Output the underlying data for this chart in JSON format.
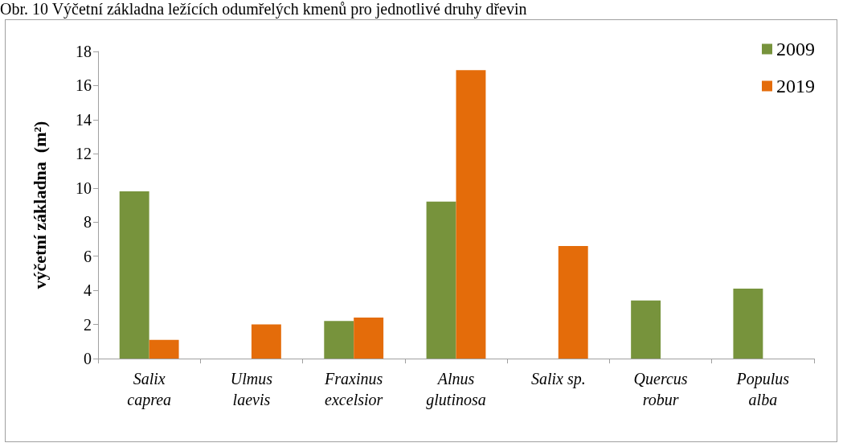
{
  "chart_data": {
    "type": "bar",
    "title": "Obr. 10 Výčetní základna ležících odumřelých kmenů pro jednotlivé druhy dřevin",
    "ylabel": "výčetní základna  (m²)",
    "categories": [
      "Salix\ncaprea",
      "Ulmus\nlaevis",
      "Fraxinus\nexcelsior",
      "Alnus\nglutinosa",
      "Salix sp.",
      "Quercus\nrobur",
      "Populus\nalba"
    ],
    "series": [
      {
        "name": "2009",
        "color": "#77933c",
        "values": [
          9.8,
          null,
          2.2,
          9.2,
          null,
          3.4,
          4.1
        ]
      },
      {
        "name": "2019",
        "color": "#e46c0a",
        "values": [
          1.1,
          2.0,
          2.4,
          16.9,
          6.6,
          null,
          null
        ]
      }
    ],
    "ylim": [
      0,
      18
    ],
    "yticks": [
      0,
      2,
      4,
      6,
      8,
      10,
      12,
      14,
      16,
      18
    ],
    "grid": false,
    "legend": "top right"
  }
}
